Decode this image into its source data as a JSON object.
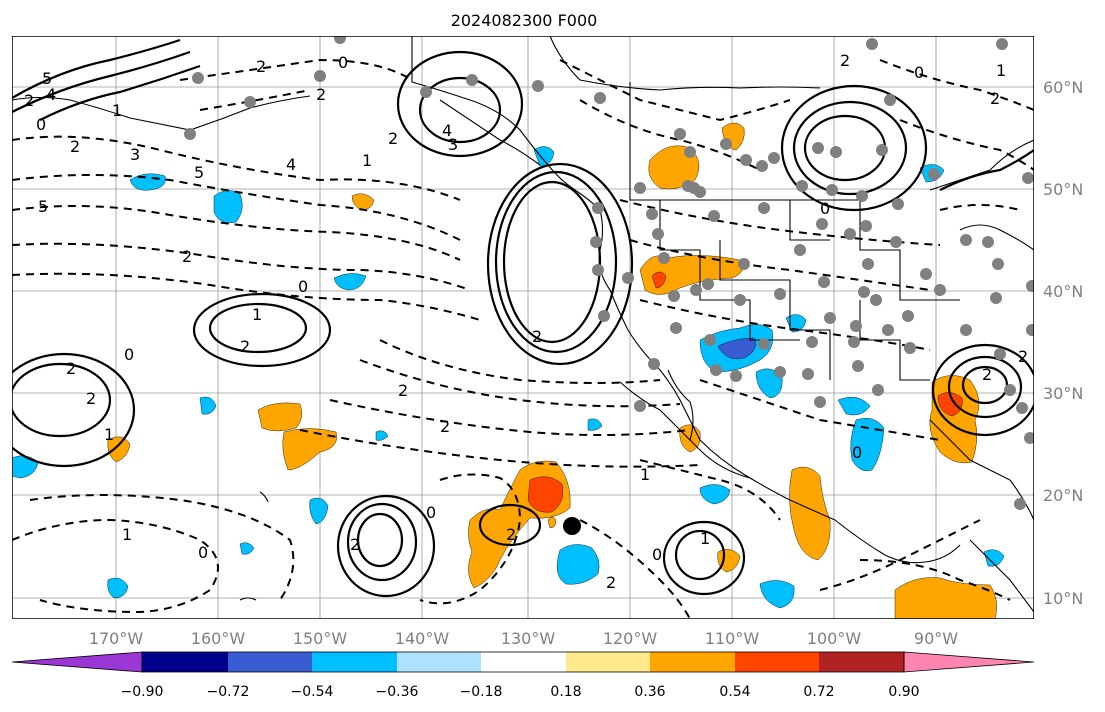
{
  "title": "2024082300 F000",
  "map": {
    "lon_ticks": [
      "170°W",
      "160°W",
      "150°W",
      "140°W",
      "130°W",
      "120°W",
      "110°W",
      "100°W",
      "90°W"
    ],
    "lat_ticks": [
      "60°N",
      "50°N",
      "40°N",
      "30°N",
      "20°N",
      "10°N"
    ],
    "contour_labels": [
      "5",
      "4",
      "2",
      "0",
      "1",
      "2",
      "3",
      "5",
      "2",
      "2",
      "5",
      "4",
      "2",
      "0",
      "1",
      "2",
      "4",
      "3",
      "2",
      "0",
      "2",
      "1",
      "2",
      "0",
      "2",
      "1",
      "2",
      "2",
      "2",
      "0",
      "1",
      "0",
      "2",
      "2",
      "0",
      "1",
      "2",
      "1",
      "0",
      "0",
      "2",
      "1",
      "2",
      "0",
      "2"
    ],
    "marker_colors": {
      "station": "#808080",
      "center": "#000000"
    }
  },
  "colorbar": {
    "ticks": [
      "−0.90",
      "−0.72",
      "−0.54",
      "−0.36",
      "−0.18",
      "0.18",
      "0.36",
      "0.54",
      "0.72",
      "0.90"
    ],
    "colors": [
      "#9a37d6",
      "#00008b",
      "#3a5cd2",
      "#00bfff",
      "#ade1ff",
      "#ffffff",
      "#ffe98a",
      "#ffa500",
      "#ff4400",
      "#b22222",
      "#ff85b0"
    ]
  }
}
